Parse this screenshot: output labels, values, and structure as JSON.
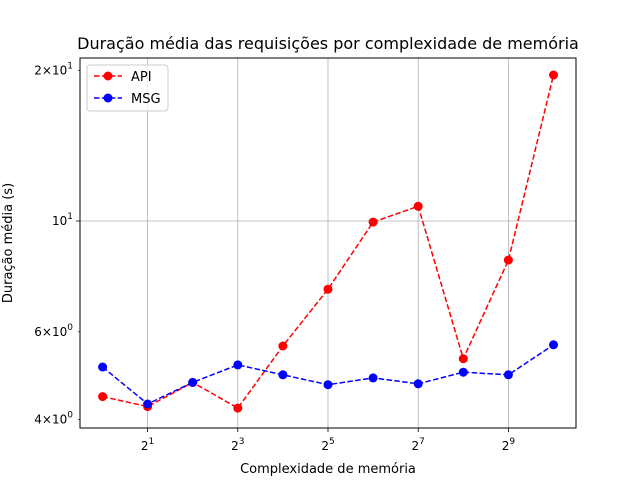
{
  "chart_data": {
    "type": "line",
    "title": "Duração média das requisições por complexidade de memória",
    "xlabel": "Complexidade de memória",
    "ylabel": "Duração média (s)",
    "x_scale": "log2",
    "y_scale": "log",
    "x": [
      1,
      2,
      4,
      8,
      16,
      32,
      64,
      128,
      256,
      512,
      1024
    ],
    "xlim": [
      0.707,
      1448
    ],
    "ylim": [
      3.85,
      21.2
    ],
    "x_ticks": [
      {
        "value": 2,
        "base": "2",
        "exp": "1"
      },
      {
        "value": 8,
        "base": "2",
        "exp": "3"
      },
      {
        "value": 32,
        "base": "2",
        "exp": "5"
      },
      {
        "value": 128,
        "base": "2",
        "exp": "7"
      },
      {
        "value": 512,
        "base": "2",
        "exp": "9"
      }
    ],
    "y_ticks": [
      {
        "value": 4,
        "mant": "4",
        "times": "×",
        "base": "10",
        "exp": "0"
      },
      {
        "value": 6,
        "mant": "6",
        "times": "×",
        "base": "10",
        "exp": "0"
      },
      {
        "value": 10,
        "mant": "",
        "times": "",
        "base": "10",
        "exp": "1"
      },
      {
        "value": 20,
        "mant": "2",
        "times": "×",
        "base": "10",
        "exp": "1"
      }
    ],
    "grid": true,
    "legend_position": "upper-left",
    "series": [
      {
        "name": "API",
        "color": "#ff0000",
        "linestyle": "dashed",
        "marker": "circle",
        "values": [
          4.45,
          4.25,
          4.75,
          4.22,
          5.62,
          7.3,
          9.95,
          10.7,
          5.3,
          8.35,
          19.6
        ]
      },
      {
        "name": "MSG",
        "color": "#0000ff",
        "linestyle": "dashed",
        "marker": "circle",
        "values": [
          5.1,
          4.3,
          4.75,
          5.15,
          4.92,
          4.7,
          4.85,
          4.72,
          4.98,
          4.92,
          5.65
        ]
      }
    ]
  }
}
